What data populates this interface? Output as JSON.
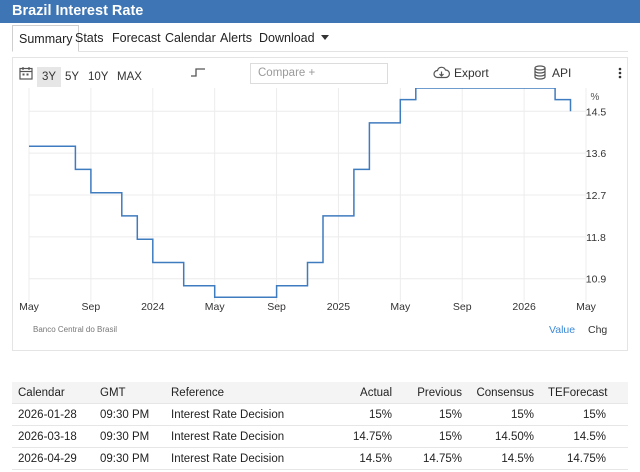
{
  "header": {
    "title": "Brazil Interest Rate"
  },
  "tabs": [
    "Summary",
    "Stats",
    "Forecast",
    "Calendar",
    "Alerts",
    "Download"
  ],
  "toolbar": {
    "ranges": [
      "3Y",
      "5Y",
      "10Y",
      "MAX"
    ],
    "active_range": "3Y",
    "compare_placeholder": "Compare +",
    "export_label": "Export",
    "api_label": "API",
    "icons": [
      "calendar-icon",
      "step-chart-icon",
      "cloud-download-icon",
      "database-icon",
      "more-vertical-icon"
    ]
  },
  "chart_data": {
    "type": "line",
    "step": true,
    "unit": "%",
    "x_ticks": [
      "May",
      "Sep",
      "2024",
      "May",
      "Sep",
      "2025",
      "May",
      "Sep",
      "2026",
      "May"
    ],
    "y_ticks": [
      10.9,
      11.8,
      12.7,
      13.6,
      14.5
    ],
    "ylim": [
      10.4,
      15.0
    ],
    "source": "Banco Central do Brasil",
    "series": [
      {
        "color": "#3f7bbf",
        "points": [
          [
            "2023-05",
            13.75
          ],
          [
            "2023-08",
            13.25
          ],
          [
            "2023-09",
            12.75
          ],
          [
            "2023-11",
            12.25
          ],
          [
            "2023-12",
            11.75
          ],
          [
            "2024-01",
            11.25
          ],
          [
            "2024-03",
            10.75
          ],
          [
            "2024-05",
            10.5
          ],
          [
            "2024-09",
            10.75
          ],
          [
            "2024-11",
            11.25
          ],
          [
            "2024-12",
            12.25
          ],
          [
            "2025-02",
            13.25
          ],
          [
            "2025-03",
            14.25
          ],
          [
            "2025-05",
            14.75
          ],
          [
            "2025-06",
            15.0
          ],
          [
            "2026-03",
            14.75
          ],
          [
            "2026-04",
            14.5
          ]
        ]
      }
    ]
  },
  "chart_footer": {
    "value_label": "Value",
    "chg_label": "Chg"
  },
  "calendar": {
    "headers": [
      "Calendar",
      "GMT",
      "Reference",
      "Actual",
      "Previous",
      "Consensus",
      "TEForecast"
    ],
    "rows": [
      [
        "2026-01-28",
        "09:30 PM",
        "Interest Rate Decision",
        "15%",
        "15%",
        "15%",
        "15%"
      ],
      [
        "2026-03-18",
        "09:30 PM",
        "Interest Rate Decision",
        "14.75%",
        "15%",
        "14.50%",
        "14.5%"
      ],
      [
        "2026-04-29",
        "09:30 PM",
        "Interest Rate Decision",
        "14.5%",
        "14.75%",
        "14.5%",
        "14.75%"
      ]
    ]
  }
}
